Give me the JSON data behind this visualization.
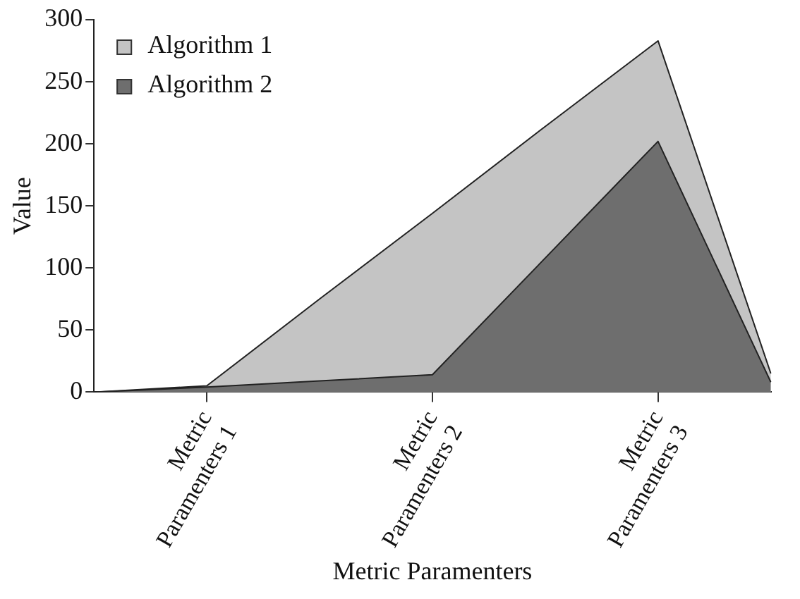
{
  "chart_data": {
    "type": "area",
    "xlabel": "Metric Paramenters",
    "ylabel": "Value",
    "categories": [
      null,
      "Metric Paramenters 1",
      null,
      "Metric Paramenters 2",
      null,
      "Metric Paramenters 3",
      null
    ],
    "ylim": [
      0,
      300
    ],
    "yticks": [
      0,
      50,
      100,
      150,
      200,
      250,
      300
    ],
    "grid": false,
    "legend": "top left",
    "series": [
      {
        "name": "Algorithm 1",
        "color": "#c4c4c4",
        "values": [
          0,
          5,
          75,
          144,
          214,
          283,
          15
        ]
      },
      {
        "name": "Algorithm 2",
        "color": "#6e6e6e",
        "values": [
          0,
          4,
          9,
          14,
          108,
          202,
          8
        ]
      }
    ]
  }
}
